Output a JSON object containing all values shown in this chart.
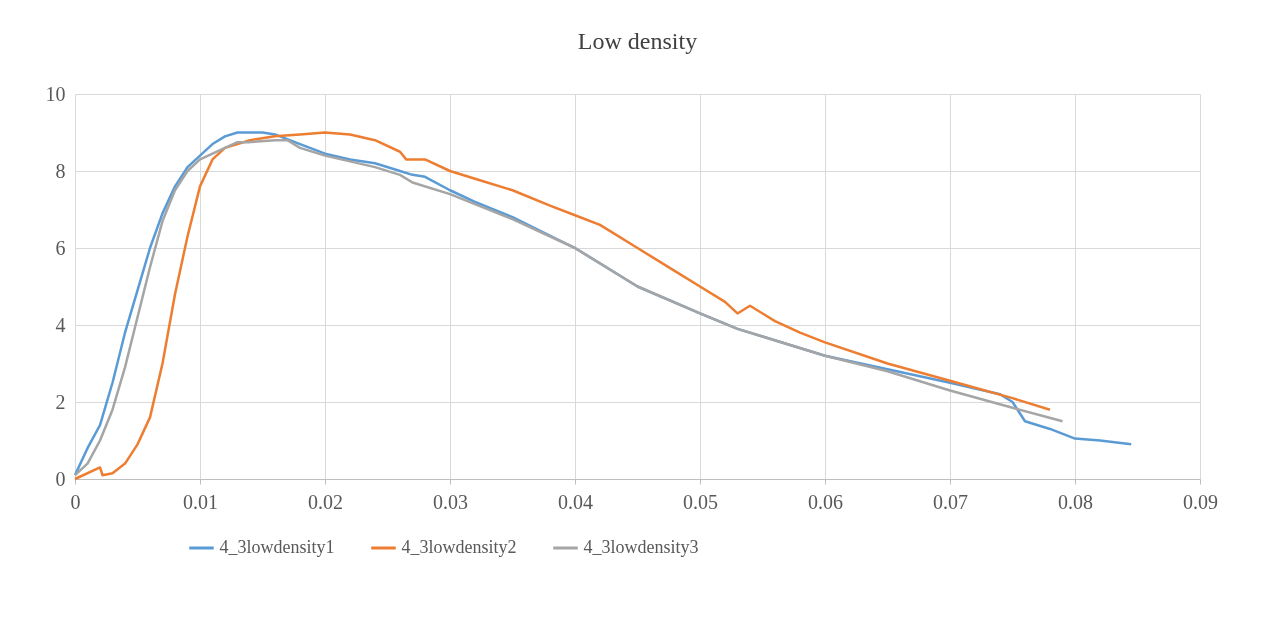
{
  "chart_data": {
    "type": "line",
    "title": "Low density",
    "xlim": [
      0,
      0.09
    ],
    "xticks": [
      0,
      0.01,
      0.02,
      0.03,
      0.04,
      0.05,
      0.06,
      0.07,
      0.08,
      0.09
    ],
    "ylim": [
      0,
      10
    ],
    "yticks": [
      0,
      2,
      4,
      6,
      8,
      10
    ],
    "grid": true,
    "legend": "bottom",
    "marker": "none",
    "line_style": "solid",
    "series": [
      {
        "name": "4_3lowdensity1",
        "color": "#5b9bd5",
        "x": [
          0,
          0.001,
          0.002,
          0.003,
          0.004,
          0.005,
          0.006,
          0.007,
          0.008,
          0.009,
          0.01,
          0.011,
          0.012,
          0.013,
          0.014,
          0.015,
          0.016,
          0.018,
          0.02,
          0.022,
          0.024,
          0.026,
          0.027,
          0.028,
          0.03,
          0.032,
          0.035,
          0.04,
          0.045,
          0.05,
          0.053,
          0.055,
          0.06,
          0.065,
          0.07,
          0.074,
          0.075,
          0.076,
          0.078,
          0.08,
          0.082,
          0.0845
        ],
        "values": [
          0.1,
          0.8,
          1.4,
          2.5,
          3.8,
          4.9,
          6.0,
          6.9,
          7.6,
          8.1,
          8.4,
          8.7,
          8.9,
          9.0,
          9.0,
          9.0,
          8.95,
          8.7,
          8.45,
          8.3,
          8.2,
          8.0,
          7.9,
          7.85,
          7.5,
          7.2,
          6.8,
          6.0,
          5.0,
          4.3,
          3.9,
          3.7,
          3.2,
          2.85,
          2.5,
          2.2,
          2.0,
          1.5,
          1.3,
          1.05,
          1.0,
          0.9
        ]
      },
      {
        "name": "4_3lowdensity2",
        "color": "#ed7d31",
        "x": [
          0,
          0.002,
          0.0022,
          0.003,
          0.004,
          0.005,
          0.006,
          0.007,
          0.008,
          0.009,
          0.01,
          0.011,
          0.012,
          0.014,
          0.016,
          0.018,
          0.02,
          0.022,
          0.024,
          0.026,
          0.0265,
          0.028,
          0.03,
          0.032,
          0.035,
          0.038,
          0.04,
          0.042,
          0.045,
          0.048,
          0.05,
          0.052,
          0.053,
          0.054,
          0.056,
          0.058,
          0.06,
          0.065,
          0.07,
          0.075,
          0.078
        ],
        "values": [
          0,
          0.3,
          0.1,
          0.15,
          0.4,
          0.9,
          1.6,
          3.0,
          4.8,
          6.3,
          7.6,
          8.3,
          8.6,
          8.8,
          8.9,
          8.95,
          9.0,
          8.95,
          8.8,
          8.5,
          8.3,
          8.3,
          8.0,
          7.8,
          7.5,
          7.1,
          6.85,
          6.6,
          6.0,
          5.4,
          5.0,
          4.6,
          4.3,
          4.5,
          4.1,
          3.8,
          3.55,
          3.0,
          2.55,
          2.1,
          1.8
        ]
      },
      {
        "name": "4_3lowdensity3",
        "color": "#a5a5a5",
        "x": [
          0,
          0.001,
          0.002,
          0.003,
          0.004,
          0.005,
          0.006,
          0.007,
          0.008,
          0.009,
          0.01,
          0.012,
          0.013,
          0.014,
          0.016,
          0.017,
          0.018,
          0.02,
          0.022,
          0.024,
          0.026,
          0.027,
          0.03,
          0.035,
          0.04,
          0.045,
          0.05,
          0.053,
          0.055,
          0.06,
          0.065,
          0.07,
          0.075,
          0.079
        ],
        "values": [
          0.1,
          0.4,
          1.0,
          1.8,
          2.9,
          4.2,
          5.5,
          6.7,
          7.5,
          8.0,
          8.3,
          8.6,
          8.75,
          8.75,
          8.8,
          8.8,
          8.6,
          8.4,
          8.25,
          8.1,
          7.9,
          7.7,
          7.4,
          6.75,
          6.0,
          5.0,
          4.3,
          3.9,
          3.7,
          3.2,
          2.8,
          2.3,
          1.85,
          1.5
        ]
      }
    ]
  }
}
